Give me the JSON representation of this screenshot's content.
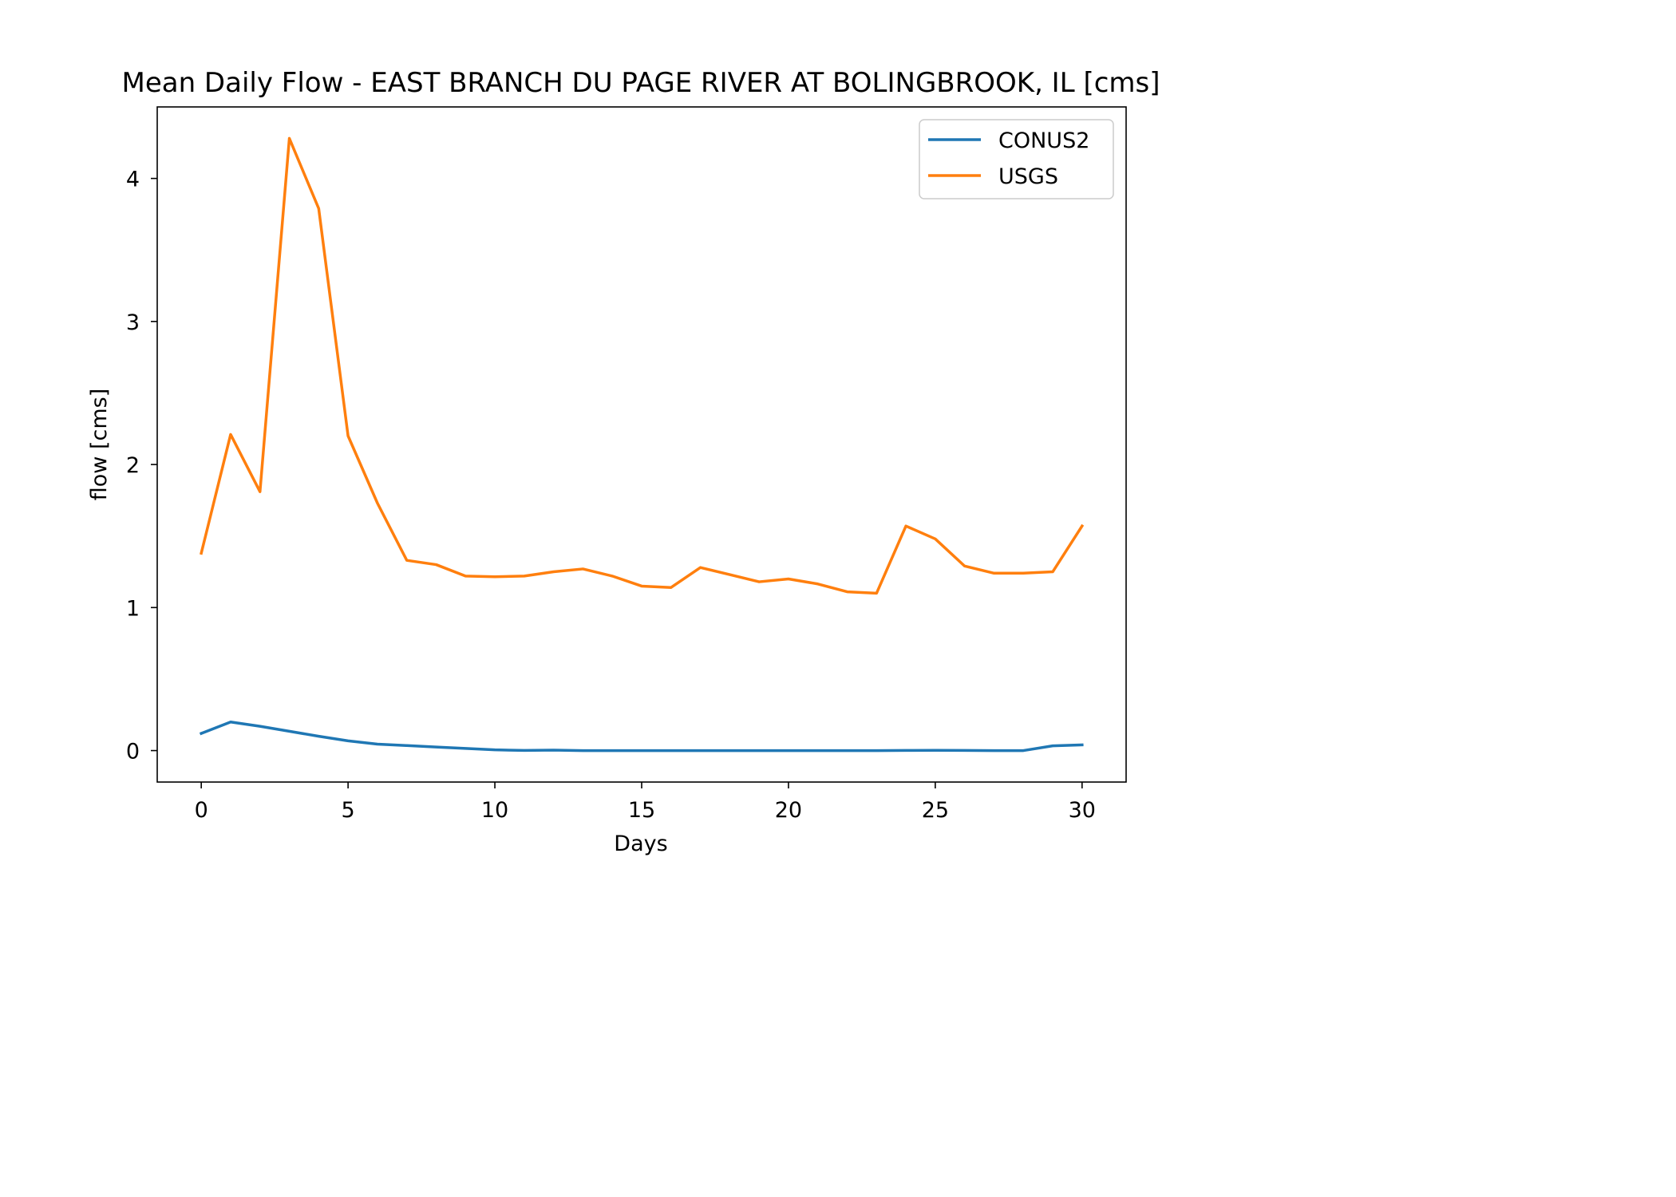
{
  "chart_data": {
    "type": "line",
    "title": "Mean Daily Flow - EAST BRANCH DU PAGE RIVER AT BOLINGBROOK, IL [cms]",
    "xlabel": "Days",
    "ylabel": "flow [cms]",
    "xlim": [
      -1.5,
      31.5
    ],
    "ylim": [
      -0.22,
      4.5
    ],
    "xticks": [
      0,
      5,
      10,
      15,
      20,
      25,
      30
    ],
    "yticks": [
      0,
      1,
      2,
      3,
      4
    ],
    "grid": false,
    "legend_position": "top-right",
    "x": [
      0,
      1,
      2,
      3,
      4,
      5,
      6,
      7,
      8,
      9,
      10,
      11,
      12,
      13,
      14,
      15,
      16,
      17,
      18,
      19,
      20,
      21,
      22,
      23,
      24,
      25,
      26,
      27,
      28,
      29,
      30
    ],
    "series": [
      {
        "name": "CONUS2",
        "color": "#1f77b4",
        "values": [
          0.12,
          0.2,
          0.17,
          0.135,
          0.1,
          0.068,
          0.045,
          0.035,
          0.025,
          0.015,
          0.005,
          0.001,
          0.003,
          0.0,
          0.0,
          0.0,
          0.0,
          0.0,
          0.0,
          0.0,
          0.0,
          0.0,
          0.0,
          0.0,
          0.001,
          0.002,
          0.001,
          0.0,
          0.0,
          0.033,
          0.04
        ]
      },
      {
        "name": "USGS",
        "color": "#ff7f0e",
        "values": [
          1.38,
          2.21,
          1.81,
          4.28,
          3.79,
          2.2,
          1.73,
          1.33,
          1.3,
          1.22,
          1.215,
          1.22,
          1.25,
          1.27,
          1.22,
          1.15,
          1.14,
          1.28,
          1.23,
          1.18,
          1.2,
          1.165,
          1.11,
          1.1,
          1.57,
          1.48,
          1.29,
          1.24,
          1.24,
          1.25,
          1.57
        ]
      }
    ]
  }
}
